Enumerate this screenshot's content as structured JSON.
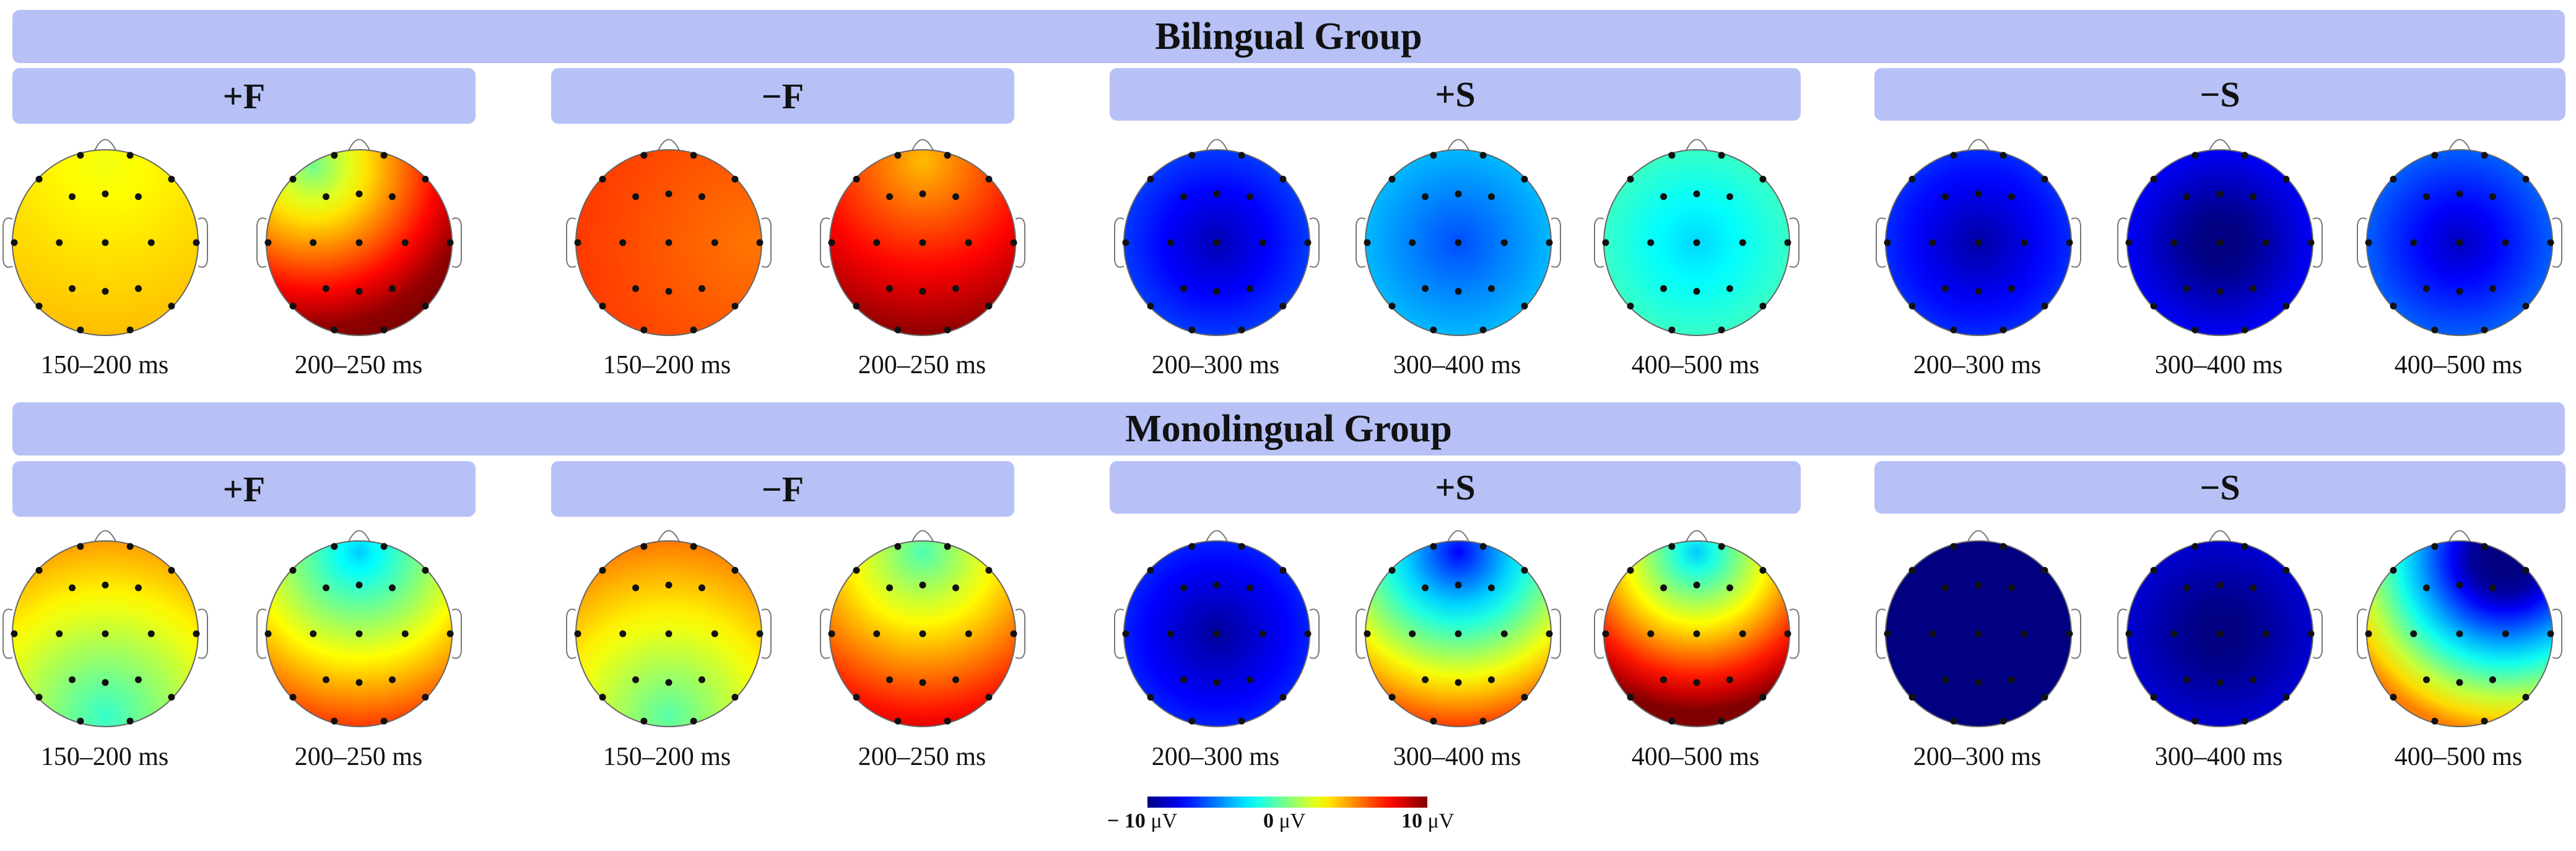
{
  "figure": {
    "colors": {
      "banner": "#b7c1f6"
    },
    "colorbar": {
      "min_value": "− 10",
      "mid_value": "0",
      "max_value": "10",
      "unit": "μV",
      "range_uV": [
        -10,
        10
      ]
    },
    "groups": [
      {
        "title": "Bilingual Group",
        "conditions": [
          {
            "label": "+F",
            "maps": [
              {
                "time": "150–200 ms",
                "mean_uV": 3.0,
                "gradient": 0.8,
                "shift_dir": "bottom"
              },
              {
                "time": "200–250 ms",
                "mean_uV": 5.2,
                "gradient": 5.5,
                "shift_dir": "bottom-right"
              }
            ]
          },
          {
            "label": "−F",
            "maps": [
              {
                "time": "150–200 ms",
                "mean_uV": 5.8,
                "gradient": 0.6,
                "shift_dir": "left"
              },
              {
                "time": "200–250 ms",
                "mean_uV": 6.8,
                "gradient": 3.0,
                "shift_dir": "bottom"
              }
            ]
          },
          {
            "label": "+S",
            "maps": [
              {
                "time": "200–300 ms",
                "mean_uV": -6.5,
                "gradient": 2.5,
                "shift_dir": "none"
              },
              {
                "time": "300–400 ms",
                "mean_uV": -4.0,
                "gradient": 2.0,
                "shift_dir": "none"
              },
              {
                "time": "400–500 ms",
                "mean_uV": -1.5,
                "gradient": 1.8,
                "shift_dir": "none"
              }
            ]
          },
          {
            "label": "−S",
            "maps": [
              {
                "time": "200–300 ms",
                "mean_uV": -6.8,
                "gradient": 2.5,
                "shift_dir": "none"
              },
              {
                "time": "300–400 ms",
                "mean_uV": -7.8,
                "gradient": 3.0,
                "shift_dir": "none"
              },
              {
                "time": "400–500 ms",
                "mean_uV": -5.8,
                "gradient": 3.0,
                "shift_dir": "none"
              }
            ]
          }
        ]
      },
      {
        "title": "Monolingual Group",
        "conditions": [
          {
            "label": "+F",
            "maps": [
              {
                "time": "150–200 ms",
                "mean_uV": 1.5,
                "gradient": 3.0,
                "shift_dir": "top"
              },
              {
                "time": "200–250 ms",
                "mean_uV": 1.5,
                "gradient": 5.0,
                "shift_dir": "bottom"
              }
            ]
          },
          {
            "label": "−F",
            "maps": [
              {
                "time": "150–200 ms",
                "mean_uV": 2.2,
                "gradient": 3.0,
                "shift_dir": "top"
              },
              {
                "time": "200–250 ms",
                "mean_uV": 3.5,
                "gradient": 4.5,
                "shift_dir": "bottom"
              }
            ]
          },
          {
            "label": "+S",
            "maps": [
              {
                "time": "200–300 ms",
                "mean_uV": -7.0,
                "gradient": 2.5,
                "shift_dir": "none"
              },
              {
                "time": "300–400 ms",
                "mean_uV": -0.5,
                "gradient": 7.0,
                "shift_dir": "bottom"
              },
              {
                "time": "400–500 ms",
                "mean_uV": 4.0,
                "gradient": 7.5,
                "shift_dir": "bottom"
              }
            ]
          },
          {
            "label": "−S",
            "maps": [
              {
                "time": "200–300 ms",
                "mean_uV": -10.0,
                "gradient": 1.0,
                "shift_dir": "none"
              },
              {
                "time": "300–400 ms",
                "mean_uV": -8.5,
                "gradient": 2.0,
                "shift_dir": "none"
              },
              {
                "time": "400–500 ms",
                "mean_uV": -4.0,
                "gradient": 9.0,
                "shift_dir": "bottom-left"
              }
            ]
          }
        ]
      }
    ]
  }
}
